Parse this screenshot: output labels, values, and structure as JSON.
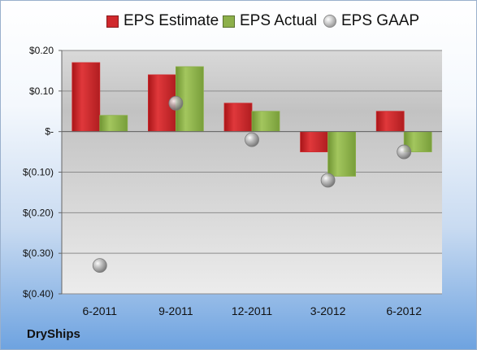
{
  "legend": {
    "estimate": "EPS Estimate",
    "actual": "EPS Actual",
    "gaap": "EPS GAAP"
  },
  "brand": "DryShips",
  "colors": {
    "estimate": "#d0282c",
    "actual": "#8db04a",
    "gaap": "#a6a6a6"
  },
  "chart_data": {
    "type": "bar",
    "categories": [
      "6-2011",
      "9-2011",
      "12-2011",
      "3-2012",
      "6-2012"
    ],
    "series": [
      {
        "name": "EPS Estimate",
        "values": [
          0.17,
          0.14,
          0.07,
          -0.05,
          0.05
        ]
      },
      {
        "name": "EPS Actual",
        "values": [
          0.04,
          0.16,
          0.05,
          -0.11,
          -0.05
        ]
      },
      {
        "name": "EPS GAAP",
        "marker": "sphere",
        "values": [
          -0.33,
          0.07,
          -0.02,
          -0.12,
          -0.05
        ]
      }
    ],
    "ylim": [
      -0.4,
      0.2
    ],
    "yticks": [
      0.2,
      0.1,
      0,
      -0.1,
      -0.2,
      -0.3,
      -0.4
    ],
    "ytick_labels": [
      "$0.20",
      "$0.10",
      "$-",
      "$(0.10)",
      "$(0.20)",
      "$(0.30)",
      "$(0.40)"
    ],
    "grid": true
  }
}
